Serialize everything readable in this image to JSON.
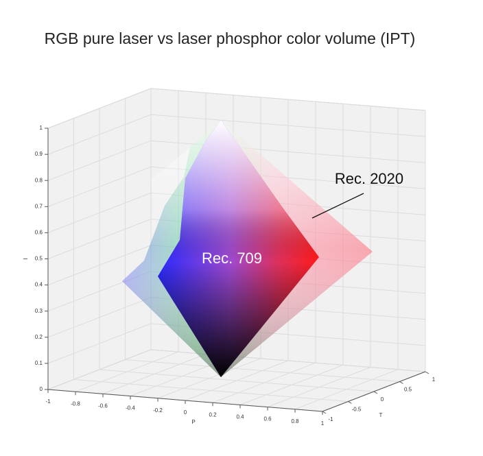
{
  "chart_data": {
    "type": "volume3d",
    "title": "RGB pure laser vs laser phosphor color volume (IPT)",
    "xlabel": "P",
    "ylabel": "T",
    "zlabel": "I",
    "xlim": [
      -1,
      1
    ],
    "ylim": [
      -1,
      1
    ],
    "zlim": [
      0,
      1
    ],
    "xticks": [
      -1,
      -0.8,
      -0.6,
      -0.4,
      -0.2,
      0,
      0.2,
      0.4,
      0.6,
      0.8,
      1
    ],
    "yticks": [
      -1,
      -0.5,
      0,
      0.5,
      1
    ],
    "zticks": [
      0,
      0.1,
      0.2,
      0.3,
      0.4,
      0.5,
      0.6,
      0.7,
      0.8,
      0.9,
      1
    ],
    "grid": true,
    "annotations": [
      {
        "text": "Rec. 2020"
      },
      {
        "text": "Rec. 709"
      }
    ]
  }
}
